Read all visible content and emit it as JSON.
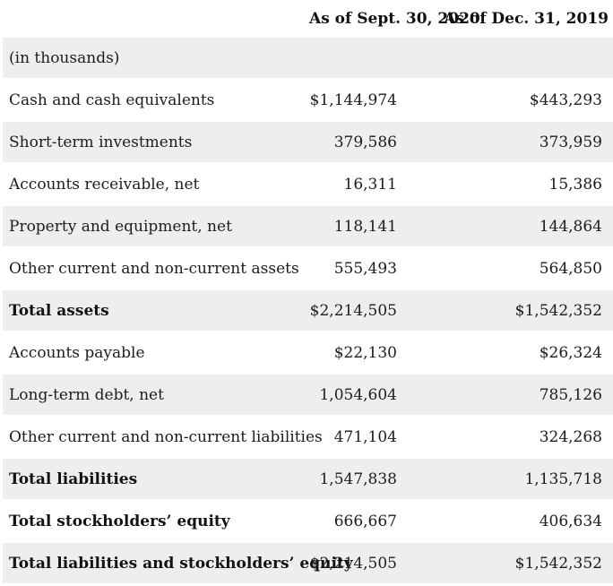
{
  "table": {
    "columns": [
      "As of Sept. 30, 2020",
      "As of Dec. 31, 2019"
    ],
    "rows": [
      {
        "label": "(in thousands)",
        "v2020": "",
        "v2019": "",
        "bold": false
      },
      {
        "label": "Cash and cash equivalents",
        "v2020": "$1,144,974",
        "v2019": "$443,293",
        "bold": false
      },
      {
        "label": "Short-term investments",
        "v2020": "379,586",
        "v2019": "373,959",
        "bold": false
      },
      {
        "label": "Accounts receivable, net",
        "v2020": "16,311",
        "v2019": "15,386",
        "bold": false
      },
      {
        "label": "Property and equipment, net",
        "v2020": "118,141",
        "v2019": "144,864",
        "bold": false
      },
      {
        "label": "Other current and non-current assets",
        "v2020": "555,493",
        "v2019": "564,850",
        "bold": false
      },
      {
        "label": "Total assets",
        "v2020": "$2,214,505",
        "v2019": "$1,542,352",
        "bold": true
      },
      {
        "label": "Accounts payable",
        "v2020": "$22,130",
        "v2019": "$26,324",
        "bold": false
      },
      {
        "label": "Long-term debt, net",
        "v2020": "1,054,604",
        "v2019": "785,126",
        "bold": false
      },
      {
        "label": "Other current and non-current liabilities",
        "v2020": "471,104",
        "v2019": "324,268",
        "bold": false
      },
      {
        "label": "Total liabilities",
        "v2020": "1,547,838",
        "v2019": "1,135,718",
        "bold": true
      },
      {
        "label": "Total stockholders’ equity",
        "v2020": "666,667",
        "v2019": "406,634",
        "bold": true
      },
      {
        "label": "Total liabilities and stockholders’ equity",
        "v2020": "$2,214,505",
        "v2019": "$1,542,352",
        "bold": true
      }
    ],
    "colors": {
      "stripe": "#eeeeee",
      "text": "#1c1c1c",
      "header_text": "#111111"
    }
  }
}
